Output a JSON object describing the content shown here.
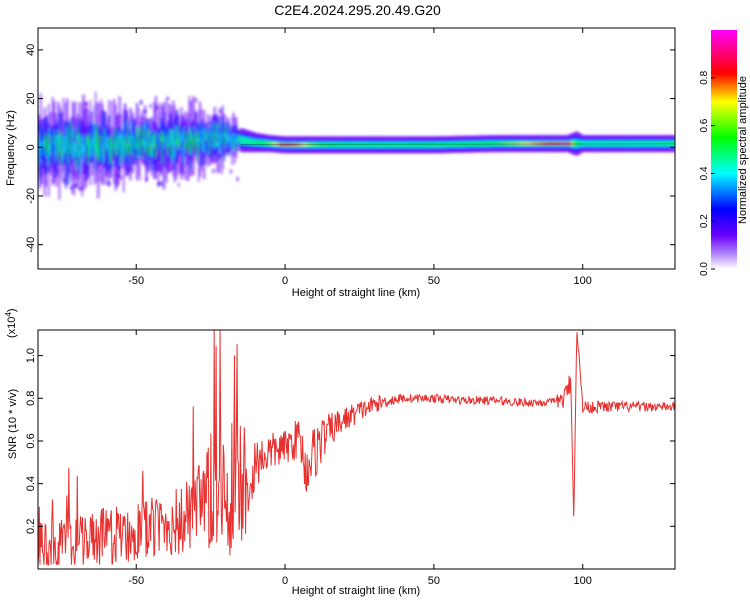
{
  "figure_title": "C2E4.2024.295.20.49.G20",
  "chart_data": [
    {
      "type": "heatmap",
      "title": "C2E4.2024.295.20.49.G20",
      "xlabel": "Height of straight line (km)",
      "ylabel": "Frequency (Hz)",
      "xlim": [
        -83,
        131
      ],
      "ylim": [
        -50,
        49
      ],
      "xticks": [
        -50,
        0,
        50,
        100
      ],
      "yticks": [
        -40,
        -20,
        0,
        20,
        40
      ],
      "xtick_labels": [
        "-50",
        "0",
        "50",
        "100"
      ],
      "ytick_labels": [
        "-40",
        "-20",
        "0",
        "20",
        "40"
      ],
      "colorbar": {
        "label": "Normalized spectral amplitude",
        "range": [
          0,
          1
        ],
        "ticks": [
          0.0,
          0.2,
          0.4,
          0.6,
          0.8
        ],
        "tick_labels": [
          "0.0",
          "0.2",
          "0.4",
          "0.6",
          "0.8"
        ],
        "colormap": [
          "#ffffff",
          "#6a00ff",
          "#0000ff",
          "#00ffff",
          "#00ff00",
          "#ffff00",
          "#ff0000",
          "#ff00ff"
        ]
      },
      "band_profile": {
        "heights_km": [
          -83,
          -70,
          -60,
          -50,
          -40,
          -30,
          -25,
          -20,
          -15,
          -10,
          -5,
          0,
          5,
          10,
          20,
          30,
          50,
          70,
          85,
          95,
          98,
          100,
          110,
          120,
          131
        ],
        "center_freq_hz": [
          0,
          0.5,
          1,
          1.5,
          2,
          3,
          3,
          4,
          3,
          2,
          1.5,
          1,
          1,
          1,
          1,
          1,
          1,
          1.5,
          1.5,
          1.5,
          1.5,
          1.5,
          1.5,
          1.5,
          1.5
        ],
        "peak_amplitude": [
          0.45,
          0.5,
          0.5,
          0.5,
          0.55,
          0.55,
          0.5,
          0.45,
          0.45,
          0.5,
          0.6,
          0.85,
          0.75,
          0.6,
          0.5,
          0.5,
          0.5,
          0.55,
          0.75,
          0.9,
          0.55,
          0.45,
          0.45,
          0.45,
          0.5
        ],
        "spread_hz": [
          14,
          14,
          13,
          12,
          12,
          11,
          10,
          9,
          5,
          4,
          3.5,
          3.5,
          3.5,
          3.5,
          3.5,
          3.5,
          3.5,
          3.5,
          3.5,
          3.5,
          5,
          3.5,
          3.5,
          3.5,
          3.5
        ]
      }
    },
    {
      "type": "line",
      "xlabel": "Height of straight line (km)",
      "ylabel": "SNR (10 * v/v)",
      "y_multiplier_label": "(x10",
      "y_multiplier_exp": "4",
      "y_multiplier_close": ")",
      "xlim": [
        -83,
        131
      ],
      "ylim": [
        0,
        1.12
      ],
      "xticks": [
        -50,
        0,
        50,
        100
      ],
      "yticks": [
        0.2,
        0.4,
        0.6,
        0.8,
        1.0
      ],
      "xtick_labels": [
        "-50",
        "0",
        "50",
        "100"
      ],
      "ytick_labels": [
        "0.2",
        "0.4",
        "0.6",
        "0.8",
        "1.0"
      ],
      "line_color": "#e8302f",
      "series": [
        {
          "name": "SNR",
          "x": [
            -83,
            -75,
            -65,
            -55,
            -45,
            -35,
            -28,
            -24,
            -21,
            -18,
            -15,
            -12,
            -10,
            -8,
            -5,
            -2,
            0,
            3,
            5,
            7,
            8,
            10,
            12,
            15,
            20,
            25,
            30,
            35,
            40,
            50,
            60,
            70,
            80,
            90,
            94,
            96,
            97,
            98,
            100,
            105,
            110,
            115,
            120,
            125,
            131
          ],
          "y": [
            0.1,
            0.12,
            0.14,
            0.16,
            0.19,
            0.22,
            0.28,
            0.35,
            0.4,
            0.38,
            0.4,
            0.45,
            0.5,
            0.52,
            0.55,
            0.56,
            0.57,
            0.6,
            0.62,
            0.45,
            0.5,
            0.55,
            0.6,
            0.65,
            0.7,
            0.74,
            0.77,
            0.79,
            0.8,
            0.8,
            0.79,
            0.79,
            0.78,
            0.78,
            0.8,
            0.88,
            0.22,
            1.12,
            0.76,
            0.76,
            0.76,
            0.76,
            0.76,
            0.76,
            0.76
          ],
          "noise_profile": {
            "heights_km": [
              -83,
              -40,
              -30,
              -25,
              -20,
              -15,
              -12,
              -10,
              -5,
              0,
              5,
              10,
              15,
              20,
              30,
              40,
              90,
              95,
              100,
              131
            ],
            "amplitude": [
              0.12,
              0.15,
              0.2,
              0.3,
              0.38,
              0.35,
              0.25,
              0.12,
              0.09,
              0.08,
              0.1,
              0.14,
              0.08,
              0.06,
              0.04,
              0.02,
              0.02,
              0.06,
              0.03,
              0.02
            ]
          }
        }
      ]
    }
  ]
}
